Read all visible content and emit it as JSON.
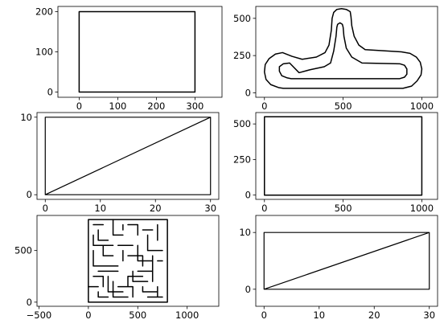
{
  "chart_data": [
    {
      "type": "line",
      "title": "",
      "xlabel": "",
      "ylabel": "",
      "xlim": [
        -55,
        370
      ],
      "ylim": [
        -13,
        213
      ],
      "xticks": [
        0,
        100,
        200,
        300
      ],
      "xtick_labels": [
        "0",
        "100",
        "200",
        "300"
      ],
      "yticks": [
        0,
        100,
        200
      ],
      "ytick_labels": [
        "0",
        "100",
        "200"
      ],
      "grid": false,
      "series": [
        {
          "x": [
            0,
            300,
            300,
            0,
            0
          ],
          "y": [
            0,
            0,
            200,
            200,
            0
          ]
        }
      ]
    },
    {
      "type": "line",
      "title": "",
      "xlabel": "",
      "ylabel": "",
      "xlim": [
        -55,
        1100
      ],
      "ylim": [
        -30,
        580
      ],
      "xticks": [
        0,
        500,
        1000
      ],
      "xtick_labels": [
        "0",
        "500",
        "1000"
      ],
      "yticks": [
        0,
        250,
        500
      ],
      "ytick_labels": [
        "0",
        "250",
        "500"
      ],
      "grid": false,
      "series": [
        {
          "x": [
            120,
            880,
            935,
            970,
            995,
            1000,
            990,
            965,
            925,
            870,
            640,
            600,
            570,
            555,
            550,
            545,
            520,
            490,
            460,
            440,
            430,
            425,
            410,
            385,
            330,
            240,
            175,
            115,
            70,
            30,
            5,
            0,
            10,
            40,
            90,
            120
          ],
          "y": [
            30,
            30,
            45,
            80,
            120,
            160,
            205,
            240,
            265,
            275,
            290,
            320,
            380,
            450,
            510,
            545,
            560,
            565,
            560,
            540,
            500,
            420,
            320,
            270,
            240,
            225,
            245,
            270,
            260,
            230,
            190,
            140,
            90,
            55,
            35,
            30
          ]
        },
        {
          "x": [
            170,
            860,
            890,
            905,
            905,
            890,
            860,
            620,
            555,
            520,
            505,
            500,
            495,
            480,
            465,
            460,
            455,
            440,
            420,
            380,
            290,
            220,
            160,
            120,
            95,
            95,
            110,
            145,
            170
          ],
          "y": [
            95,
            95,
            105,
            125,
            160,
            185,
            195,
            200,
            240,
            300,
            380,
            440,
            460,
            470,
            460,
            440,
            380,
            280,
            200,
            175,
            155,
            135,
            200,
            195,
            175,
            145,
            115,
            100,
            95
          ]
        }
      ]
    },
    {
      "type": "line",
      "title": "",
      "xlabel": "",
      "ylabel": "",
      "xlim": [
        -1.5,
        31.5
      ],
      "ylim": [
        -0.6,
        10.6
      ],
      "xticks": [
        0,
        10,
        20,
        30
      ],
      "xtick_labels": [
        "0",
        "10",
        "20",
        "30"
      ],
      "yticks": [
        0,
        10
      ],
      "ytick_labels": [
        "0",
        "10"
      ],
      "grid": false,
      "series": [
        {
          "x": [
            0,
            30,
            30,
            0,
            0,
            30
          ],
          "y": [
            0,
            0,
            10,
            10,
            0,
            10
          ]
        }
      ]
    },
    {
      "type": "line",
      "title": "",
      "xlabel": "",
      "ylabel": "",
      "xlim": [
        -55,
        1100
      ],
      "ylim": [
        -30,
        580
      ],
      "xticks": [
        0,
        500,
        1000
      ],
      "xtick_labels": [
        "0",
        "500",
        "1000"
      ],
      "yticks": [
        0,
        250,
        500
      ],
      "ytick_labels": [
        "0",
        "250",
        "500"
      ],
      "grid": false,
      "series": [
        {
          "x": [
            0,
            1000,
            1000,
            0,
            0
          ],
          "y": [
            0,
            0,
            550,
            550,
            0
          ]
        }
      ]
    },
    {
      "type": "line",
      "title": "",
      "xlabel": "",
      "ylabel": "",
      "xlim": [
        -520,
        1320
      ],
      "ylim": [
        -40,
        840
      ],
      "xticks": [
        -500,
        0,
        500,
        1000
      ],
      "xtick_labels": [
        "−500",
        "0",
        "500",
        "1000"
      ],
      "yticks": [
        0,
        500
      ],
      "ytick_labels": [
        "0",
        "500"
      ],
      "grid": false,
      "series": [
        {
          "x": [
            0,
            800,
            800,
            0,
            0
          ],
          "y": [
            0,
            0,
            800,
            800,
            0
          ]
        },
        {
          "x": [
            50,
            150,
            null,
            100,
            100,
            200,
            null,
            250,
            250,
            350,
            null,
            400,
            500,
            500,
            null,
            550,
            650,
            null,
            700,
            700,
            null,
            150,
            150,
            250,
            null,
            300,
            450,
            null,
            600,
            600,
            750,
            null,
            50,
            50,
            200,
            null,
            350,
            350,
            null,
            400,
            550,
            550,
            null,
            650,
            650,
            null,
            100,
            300,
            null,
            450,
            450,
            600,
            null,
            700,
            750,
            null,
            50,
            150,
            150,
            null,
            200,
            200,
            350,
            null,
            400,
            400,
            null,
            500,
            650,
            650,
            null,
            0,
            100,
            null,
            250,
            250,
            400,
            null,
            550,
            550,
            700,
            null,
            100,
            100,
            200,
            null,
            300,
            450,
            450,
            null,
            600,
            750,
            null,
            50,
            50,
            250,
            null,
            350,
            350,
            null,
            500,
            500,
            650,
            null,
            150,
            300,
            null,
            400,
            550,
            null,
            700,
            700
          ],
          "y": [
            750,
            750,
            null,
            700,
            600,
            600,
            null,
            800,
            650,
            650,
            null,
            750,
            750,
            650,
            null,
            700,
            700,
            null,
            750,
            600,
            null,
            550,
            450,
            450,
            null,
            550,
            550,
            null,
            650,
            500,
            500,
            null,
            500,
            350,
            350,
            null,
            500,
            400,
            null,
            450,
            450,
            350,
            null,
            450,
            300,
            null,
            300,
            300,
            null,
            300,
            200,
            200,
            null,
            400,
            400,
            null,
            250,
            250,
            150,
            null,
            250,
            100,
            100,
            null,
            250,
            150,
            null,
            300,
            300,
            200,
            null,
            150,
            150,
            null,
            200,
            50,
            50,
            null,
            150,
            100,
            100,
            null,
            100,
            50,
            50,
            null,
            150,
            150,
            50,
            null,
            50,
            50,
            null,
            650,
            550,
            550,
            null,
            750,
            700,
            null,
            550,
            400,
            400,
            null,
            350,
            350,
            null,
            250,
            250,
            null,
            150,
            50
          ]
        }
      ]
    },
    {
      "type": "line",
      "title": "",
      "xlabel": "",
      "ylabel": "",
      "xlim": [
        -1.5,
        31.5
      ],
      "ylim": [
        -3,
        13
      ],
      "xticks": [
        0,
        10,
        20,
        30
      ],
      "xtick_labels": [
        "0",
        "10",
        "20",
        "30"
      ],
      "yticks": [
        0,
        10
      ],
      "ytick_labels": [
        "0",
        "10"
      ],
      "grid": false,
      "series": [
        {
          "x": [
            0,
            30,
            30,
            0,
            0,
            30
          ],
          "y": [
            0,
            0,
            10,
            10,
            0,
            10
          ]
        }
      ]
    }
  ]
}
